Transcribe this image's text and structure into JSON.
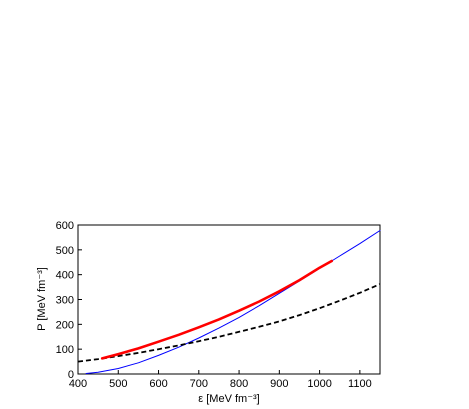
{
  "chart_data": {
    "type": "line",
    "xlabel": "ε [MeV fm⁻³]",
    "ylabel": "P [MeV fm⁻³]",
    "xlim": [
      400,
      1150
    ],
    "ylim": [
      0,
      600
    ],
    "x_ticks": [
      "400",
      "500",
      "600",
      "700",
      "800",
      "900",
      "1000",
      "1100"
    ],
    "y_ticks": [
      "0",
      "100",
      "200",
      "300",
      "400",
      "500",
      "600"
    ],
    "grid": false,
    "legend": "none",
    "series": [
      {
        "color": "#ff0000",
        "style": "solid-thick",
        "x": [
          460,
          500,
          550,
          600,
          650,
          700,
          750,
          800,
          850,
          900,
          950,
          1000,
          1030
        ],
        "y": [
          63,
          80,
          103,
          130,
          158,
          188,
          220,
          255,
          292,
          333,
          378,
          428,
          455
        ]
      },
      {
        "color": "#0000ff",
        "style": "solid-thin",
        "x": [
          420,
          450,
          500,
          550,
          600,
          650,
          700,
          750,
          800,
          850,
          900,
          950,
          1000,
          1050,
          1100,
          1150
        ],
        "y": [
          2,
          7,
          22,
          45,
          75,
          108,
          145,
          185,
          228,
          275,
          325,
          375,
          425,
          475,
          525,
          578
        ]
      },
      {
        "color": "#000000",
        "style": "dashed",
        "x": [
          400,
          450,
          500,
          550,
          600,
          650,
          700,
          750,
          800,
          850,
          900,
          950,
          1000,
          1050,
          1100,
          1150
        ],
        "y": [
          50,
          60,
          72,
          85,
          100,
          115,
          132,
          150,
          170,
          190,
          212,
          237,
          265,
          295,
          327,
          362
        ]
      }
    ]
  }
}
